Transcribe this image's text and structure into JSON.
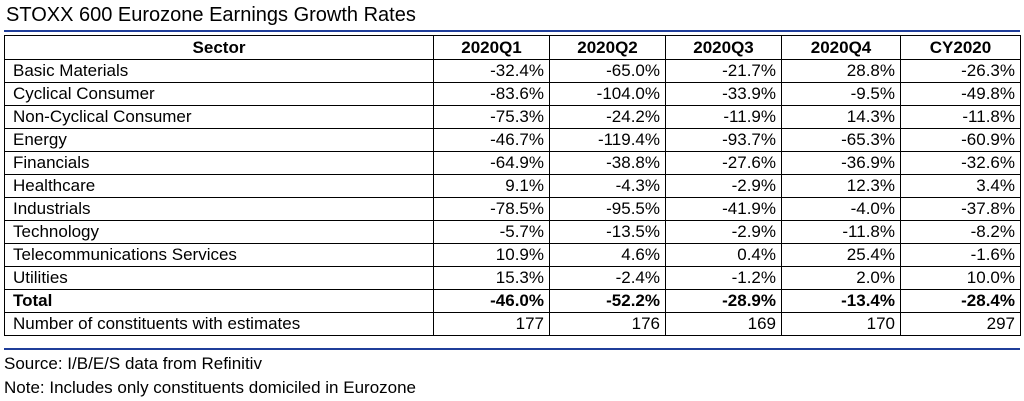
{
  "title": "STOXX 600 Eurozone Earnings Growth Rates",
  "table": {
    "headers": [
      "Sector",
      "2020Q1",
      "2020Q2",
      "2020Q3",
      "2020Q4",
      "CY2020"
    ],
    "rows": [
      [
        "Basic Materials",
        "-32.4%",
        "-65.0%",
        "-21.7%",
        "28.8%",
        "-26.3%"
      ],
      [
        "Cyclical Consumer",
        "-83.6%",
        "-104.0%",
        "-33.9%",
        "-9.5%",
        "-49.8%"
      ],
      [
        "Non-Cyclical Consumer",
        "-75.3%",
        "-24.2%",
        "-11.9%",
        "14.3%",
        "-11.8%"
      ],
      [
        "Energy",
        "-46.7%",
        "-119.4%",
        "-93.7%",
        "-65.3%",
        "-60.9%"
      ],
      [
        "Financials",
        "-64.9%",
        "-38.8%",
        "-27.6%",
        "-36.9%",
        "-32.6%"
      ],
      [
        "Healthcare",
        "9.1%",
        "-4.3%",
        "-2.9%",
        "12.3%",
        "3.4%"
      ],
      [
        "Industrials",
        "-78.5%",
        "-95.5%",
        "-41.9%",
        "-4.0%",
        "-37.8%"
      ],
      [
        "Technology",
        "-5.7%",
        "-13.5%",
        "-2.9%",
        "-11.8%",
        "-8.2%"
      ],
      [
        "Telecommunications Services",
        "10.9%",
        "4.6%",
        "0.4%",
        "25.4%",
        "-1.6%"
      ],
      [
        "Utilities",
        "15.3%",
        "-2.4%",
        "-1.2%",
        "2.0%",
        "10.0%"
      ],
      [
        "Total",
        "-46.0%",
        "-52.2%",
        "-28.9%",
        "-13.4%",
        "-28.4%"
      ],
      [
        "Number of constituents with estimates",
        "177",
        "176",
        "169",
        "170",
        "297"
      ]
    ]
  },
  "source_note": "Source: I/B/E/S data from Refinitiv",
  "scope_note": "Note: Includes only constituents domiciled in Eurozone",
  "colors": {
    "rule": "#1f3d99"
  }
}
